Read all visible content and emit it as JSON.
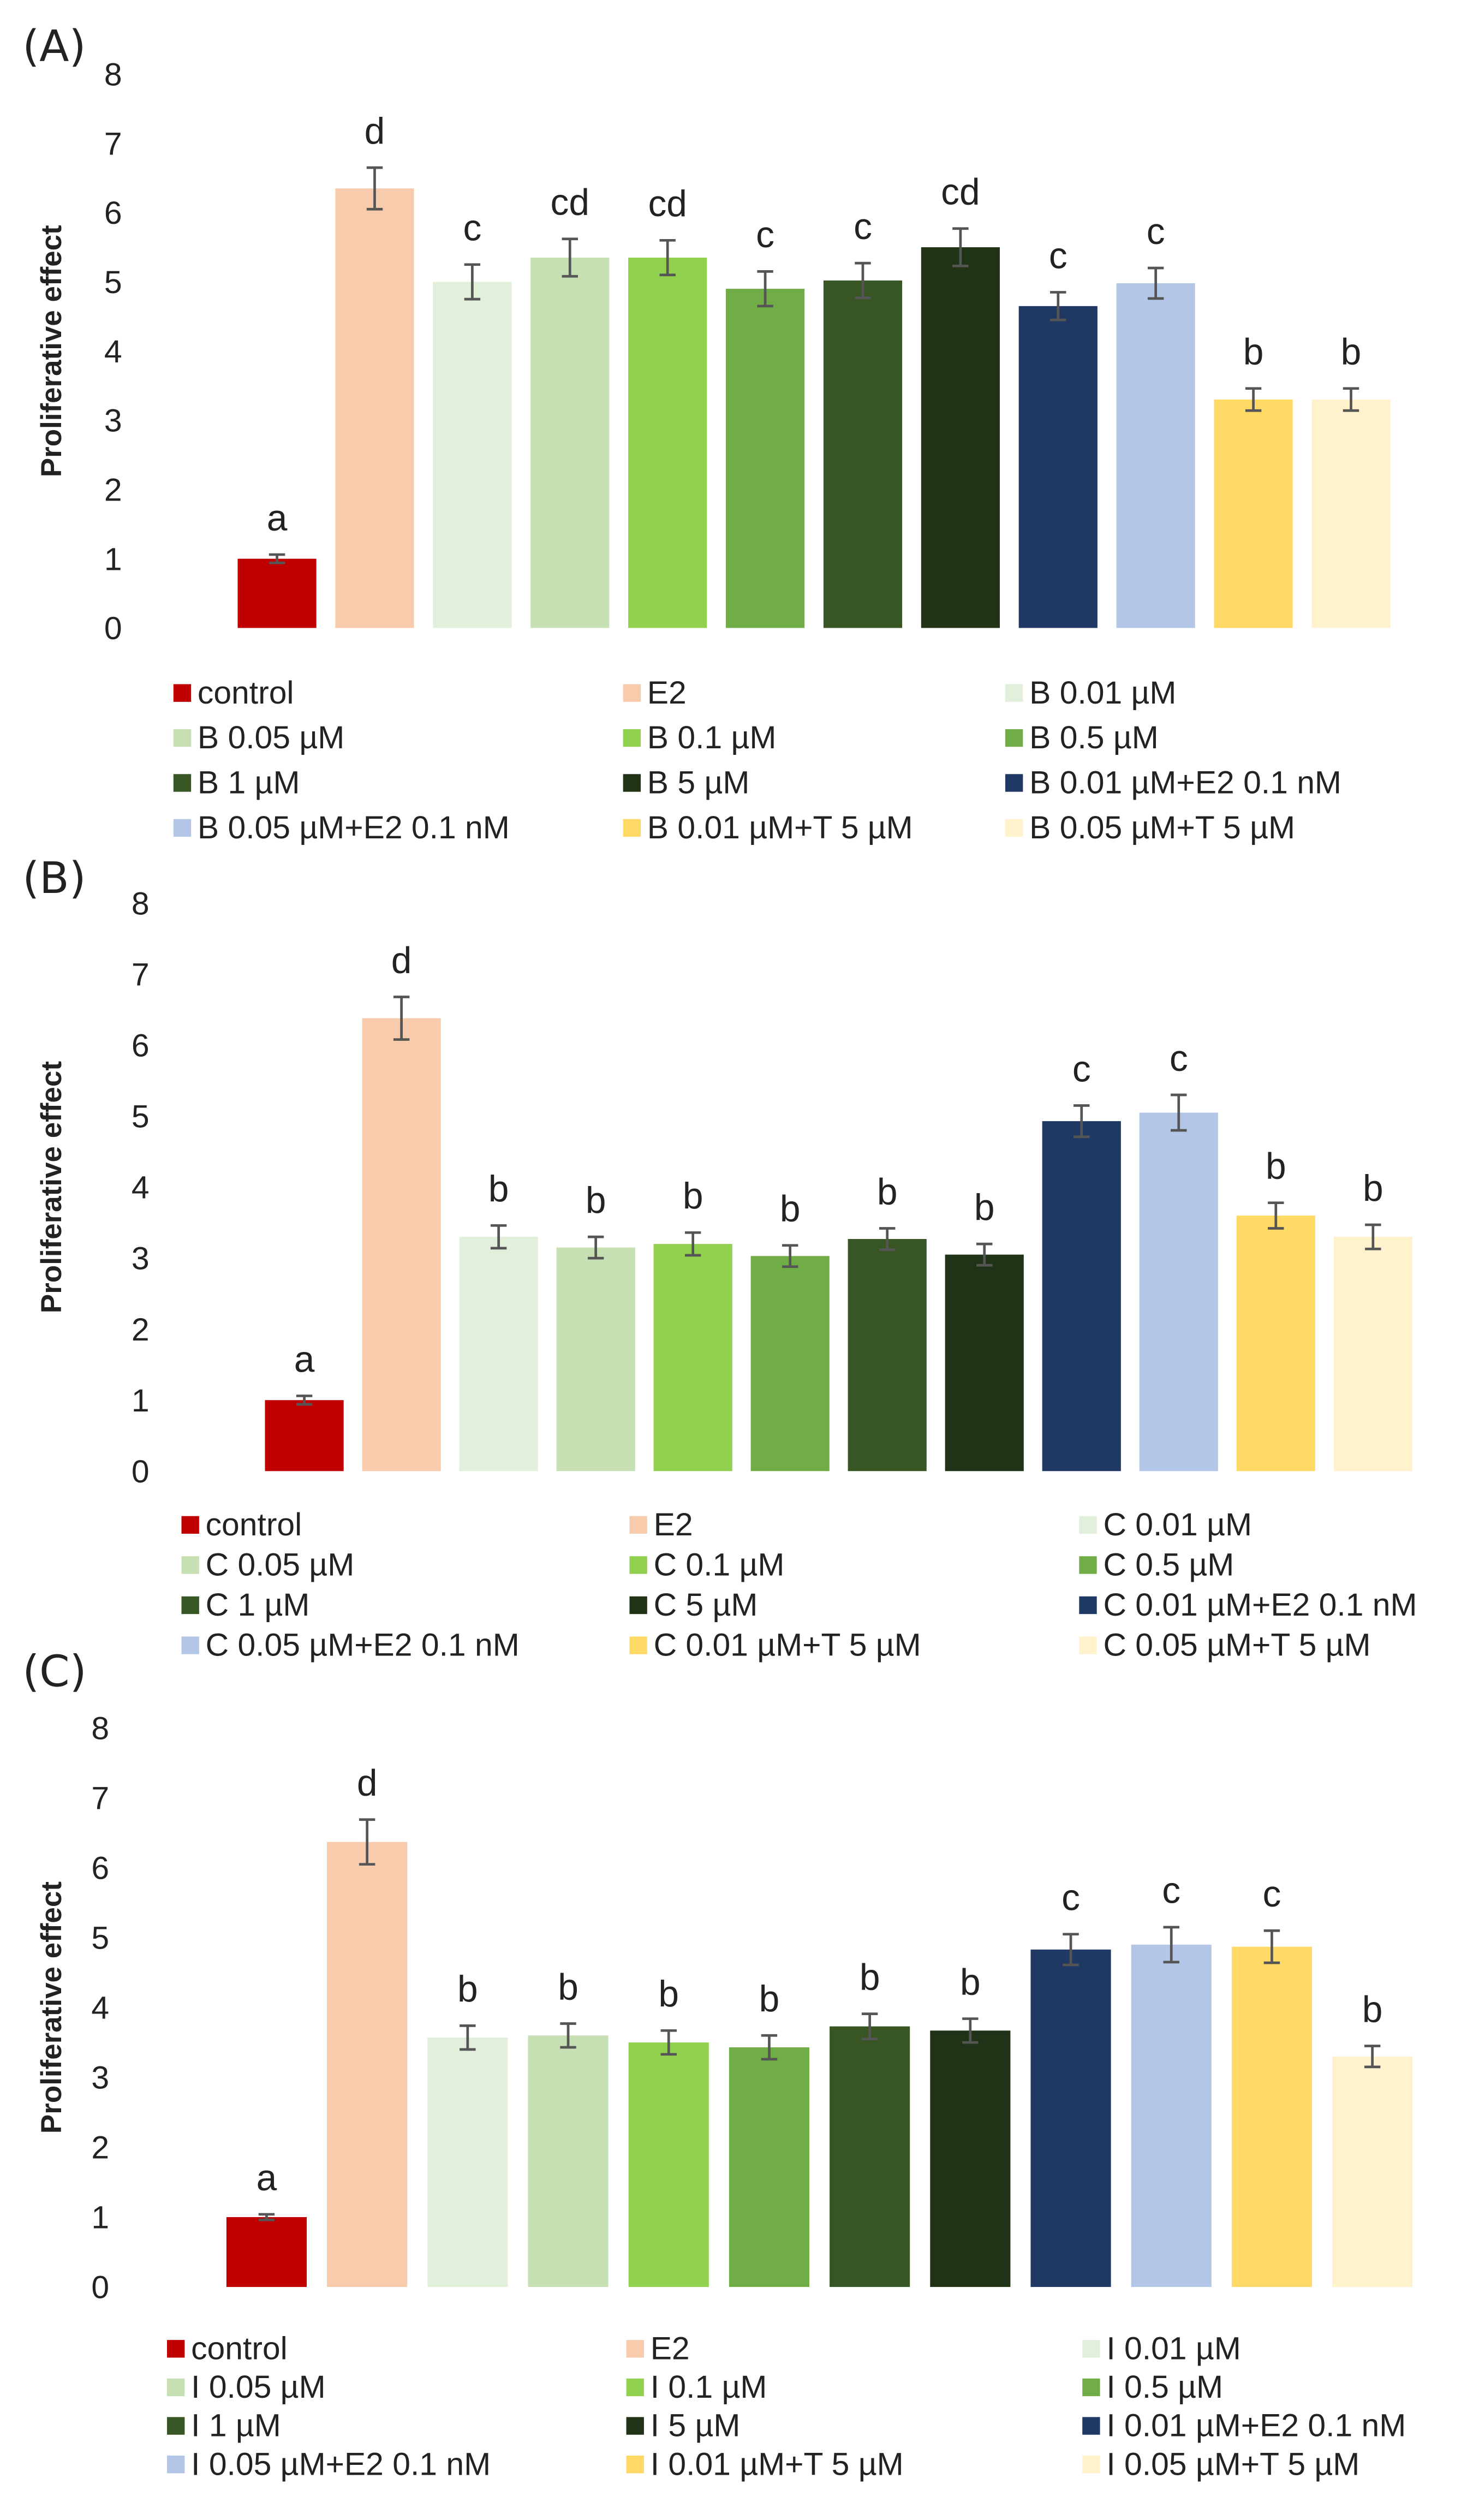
{
  "colors": {
    "control": "#c00000",
    "e2": "#f8cbad",
    "c001": "#e2efda",
    "c005": "#c6e0b4",
    "c01": "#92d050",
    "c05": "#70ad47",
    "c1": "#375623",
    "c5": "#203316",
    "c001e2": "#1f3864",
    "c005e2": "#b4c6e7",
    "c001t": "#ffd966",
    "c005t": "#fff2cc",
    "axis_text": "#222222",
    "error_bar": "#555555"
  },
  "chart_data": [
    {
      "type": "bar",
      "panel_label": "(A)",
      "ylabel": "Proliferative effect",
      "ylim": [
        0,
        8
      ],
      "yticks": [
        "0",
        "1",
        "2",
        "3",
        "4",
        "5",
        "6",
        "7",
        "8"
      ],
      "grid": false,
      "legend_position": "bottom",
      "categories": [
        "control",
        "E2",
        "B 0.01 µM",
        "B 0.05 µM",
        "B 0.1 µM",
        "B 0.5 µM",
        "B 1 µM",
        "B 5 µM",
        "B 0.01 µM+E2 0.1 nM",
        "B 0.05 µM+E2 0.1 nM",
        "B 0.01 µM+T 5 µM",
        "B 0.05 µM+T 5 µM"
      ],
      "values": [
        1.0,
        6.35,
        5.0,
        5.35,
        5.35,
        4.9,
        5.02,
        5.5,
        4.65,
        4.98,
        3.3,
        3.3
      ],
      "errors": [
        0.06,
        0.3,
        0.25,
        0.27,
        0.25,
        0.25,
        0.25,
        0.27,
        0.2,
        0.22,
        0.16,
        0.16
      ],
      "significance": [
        "a",
        "d",
        "c",
        "cd",
        "cd",
        "c",
        "c",
        "cd",
        "c",
        "c",
        "b",
        "b"
      ],
      "color_keys": [
        "control",
        "e2",
        "c001",
        "c005",
        "c01",
        "c05",
        "c1",
        "c5",
        "c001e2",
        "c005e2",
        "c001t",
        "c005t"
      ]
    },
    {
      "type": "bar",
      "panel_label": "(B)",
      "ylabel": "Proliferative effect",
      "ylim": [
        0,
        8
      ],
      "yticks": [
        "0",
        "1",
        "2",
        "3",
        "4",
        "5",
        "6",
        "7",
        "8"
      ],
      "grid": false,
      "legend_position": "bottom",
      "categories": [
        "control",
        "E2",
        "C 0.01 µM",
        "C 0.05 µM",
        "C 0.1 µM",
        "C 0.5 µM",
        "C 1 µM",
        "C 5 µM",
        "C 0.01 µM+E2 0.1 nM",
        "C 0.05 µM+E2 0.1 nM",
        "C 0.01 µM+T 5 µM",
        "C 0.05 µM+T 5 µM"
      ],
      "values": [
        1.0,
        6.38,
        3.3,
        3.15,
        3.2,
        3.03,
        3.27,
        3.05,
        4.93,
        5.05,
        3.6,
        3.3
      ],
      "errors": [
        0.06,
        0.3,
        0.16,
        0.15,
        0.16,
        0.15,
        0.15,
        0.15,
        0.22,
        0.25,
        0.18,
        0.17
      ],
      "significance": [
        "a",
        "d",
        "b",
        "b",
        "b",
        "b",
        "b",
        "b",
        "c",
        "c",
        "b",
        "b"
      ],
      "color_keys": [
        "control",
        "e2",
        "c001",
        "c005",
        "c01",
        "c05",
        "c1",
        "c5",
        "c001e2",
        "c005e2",
        "c001t",
        "c005t"
      ]
    },
    {
      "type": "bar",
      "panel_label": "(C)",
      "ylabel": "Proliferative effect",
      "ylim": [
        0,
        8
      ],
      "yticks": [
        "0",
        "1",
        "2",
        "3",
        "4",
        "5",
        "6",
        "7",
        "8"
      ],
      "grid": false,
      "legend_position": "bottom",
      "categories": [
        "control",
        "E2",
        "I 0.01 µM",
        "I 0.05 µM",
        "I 0.1 µM",
        "I 0.5 µM",
        "I 1 µM",
        "I 5 µM",
        "I 0.01 µM+E2 0.1 nM",
        "I 0.05 µM+E2 0.1 nM",
        "I 0.01 µM+T 5 µM",
        "I 0.05 µM+T 5 µM"
      ],
      "values": [
        1.0,
        6.37,
        3.57,
        3.6,
        3.5,
        3.43,
        3.73,
        3.67,
        4.83,
        4.9,
        4.87,
        3.3
      ],
      "errors": [
        0.04,
        0.32,
        0.17,
        0.17,
        0.17,
        0.17,
        0.18,
        0.17,
        0.22,
        0.25,
        0.23,
        0.15
      ],
      "significance": [
        "a",
        "d",
        "b",
        "b",
        "b",
        "b",
        "b",
        "b",
        "c",
        "c",
        "c",
        "b"
      ],
      "color_keys": [
        "control",
        "e2",
        "c001",
        "c005",
        "c01",
        "c05",
        "c1",
        "c5",
        "c001e2",
        "c005e2",
        "c001t",
        "c005t"
      ]
    }
  ]
}
